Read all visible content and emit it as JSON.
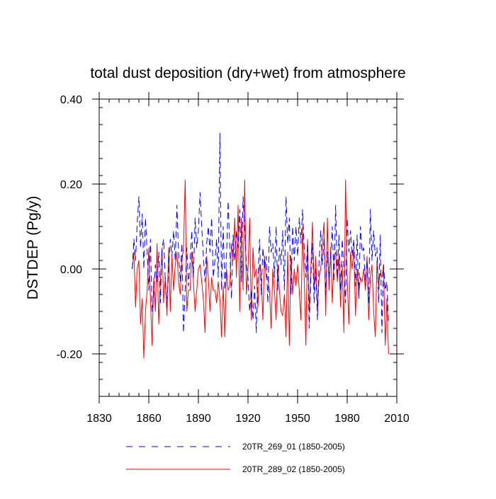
{
  "chart_data": {
    "type": "line",
    "title": "total dust deposition (dry+wet) from atmosphere",
    "xlabel": "",
    "ylabel": "DSTDEP  (Pg/y)",
    "xlim": [
      1830,
      2010
    ],
    "ylim": [
      -0.3,
      0.4
    ],
    "x_ticks": [
      1830,
      1860,
      1890,
      1920,
      1950,
      1980,
      2010
    ],
    "x_tick_labels": [
      "1830",
      "1860",
      "1890",
      "1920",
      "1950",
      "1980",
      "2010"
    ],
    "y_ticks": [
      -0.2,
      0.0,
      0.2,
      0.4
    ],
    "y_tick_labels": [
      "-0.20",
      "0.00",
      "0.20",
      "0.40"
    ],
    "x_minor_step": 6,
    "y_minor_step": 0.04,
    "legend_position": "bottom",
    "x_start": 1850,
    "series": [
      {
        "name": "20TR_269_01 (1850-2005)",
        "color": "#0000ff",
        "dash": "dashed",
        "values": [
          0.0,
          0.07,
          0.02,
          0.11,
          0.17,
          0.05,
          0.13,
          0.0,
          0.12,
          0.04,
          -0.05,
          0.07,
          -0.1,
          -0.06,
          0.01,
          -0.03,
          0.04,
          -0.08,
          0.05,
          0.07,
          -0.03,
          -0.09,
          0.0,
          0.07,
          0.03,
          0.09,
          0.02,
          0.15,
          0.04,
          -0.03,
          0.06,
          -0.15,
          -0.05,
          0.05,
          -0.04,
          0.02,
          0.09,
          -0.02,
          0.12,
          0.05,
          0.09,
          0.18,
          0.1,
          0.03,
          -0.03,
          0.06,
          0.1,
          0.04,
          0.12,
          -0.02,
          0.02,
          0.07,
          -0.02,
          0.32,
          -0.05,
          0.1,
          -0.05,
          0.03,
          0.16,
          0.05,
          -0.07,
          0.08,
          0.02,
          0.09,
          0.05,
          0.14,
          -0.03,
          0.17,
          0.1,
          0.01,
          -0.02,
          -0.1,
          -0.05,
          -0.12,
          -0.04,
          -0.15,
          -0.02,
          0.07,
          -0.06,
          0.05,
          0.0,
          0.03,
          -0.08,
          0.1,
          0.04,
          0.06,
          -0.02,
          0.1,
          -0.05,
          0.05,
          0.01,
          0.09,
          -0.05,
          0.17,
          0.06,
          0.12,
          -0.06,
          0.1,
          0.02,
          0.1,
          0.03,
          0.12,
          0.06,
          0.14,
          0.05,
          -0.02,
          0.06,
          -0.14,
          -0.02,
          0.06,
          -0.08,
          0.0,
          -0.12,
          0.02,
          0.09,
          0.01,
          0.07,
          -0.06,
          0.04,
          -0.02,
          0.03,
          0.1,
          -0.03,
          0.15,
          -0.02,
          0.08,
          -0.05,
          0.07,
          0.0,
          -0.08,
          0.12,
          0.04,
          0.09,
          0.03,
          0.07,
          -0.04,
          0.08,
          -0.07,
          0.1,
          0.04,
          0.05,
          -0.04,
          0.02,
          -0.08,
          0.14,
          0.02,
          0.09,
          0.03,
          0.05,
          -0.08,
          0.08,
          -0.15,
          0.01,
          -0.05,
          -0.03,
          -0.13
        ]
      },
      {
        "name": "20TR_289_02 (1850-2005)",
        "color": "#ff0000",
        "dash": "solid",
        "values": [
          0.0,
          0.04,
          -0.09,
          0.0,
          0.02,
          -0.13,
          -0.07,
          -0.21,
          -0.1,
          -0.05,
          0.05,
          -0.07,
          -0.18,
          -0.02,
          -0.1,
          0.06,
          -0.13,
          -0.03,
          0.05,
          -0.08,
          -0.02,
          -0.11,
          0.05,
          -0.1,
          0.03,
          -0.05,
          0.01,
          0.04,
          -0.03,
          -0.06,
          0.02,
          0.05,
          0.21,
          -0.1,
          -0.05,
          -0.05,
          0.04,
          -0.03,
          -0.1,
          -0.05,
          0.0,
          0.01,
          -0.03,
          -0.07,
          -0.15,
          0.03,
          -0.02,
          -0.1,
          -0.02,
          -0.05,
          -0.05,
          -0.08,
          -0.03,
          -0.07,
          -0.16,
          -0.04,
          -0.16,
          0.0,
          -0.05,
          -0.04,
          0.06,
          0.02,
          0.12,
          -0.02,
          0.15,
          -0.1,
          0.12,
          -0.05,
          0.21,
          -0.06,
          0.0,
          0.12,
          -0.12,
          0.05,
          -0.02,
          0.0,
          -0.09,
          0.01,
          -0.02,
          -0.12,
          0.03,
          -0.02,
          -0.02,
          -0.05,
          -0.14,
          0.0,
          -0.05,
          -0.12,
          0.01,
          -0.05,
          -0.1,
          -0.11,
          -0.06,
          -0.16,
          0.04,
          -0.18,
          0.03,
          -0.06,
          0.0,
          -0.04,
          0.01,
          -0.05,
          -0.12,
          0.1,
          -0.02,
          -0.18,
          0.07,
          -0.1,
          0.0,
          0.11,
          -0.05,
          0.03,
          -0.1,
          -0.02,
          0.0,
          0.06,
          0.11,
          -0.11,
          0.12,
          -0.05,
          0.05,
          -0.08,
          0.03,
          0.04,
          -0.03,
          0.03,
          -0.09,
          0.01,
          -0.15,
          0.21,
          -0.02,
          -0.13,
          0.04,
          0.0,
          0.05,
          -0.11,
          0.0,
          -0.06,
          -0.02,
          -0.03,
          0.0,
          -0.05,
          0.03,
          -0.12,
          -0.02,
          0.01,
          -0.1,
          -0.16,
          0.02,
          -0.04,
          -0.01,
          -0.02,
          0.01,
          -0.18,
          -0.07,
          -0.2
        ]
      }
    ]
  }
}
